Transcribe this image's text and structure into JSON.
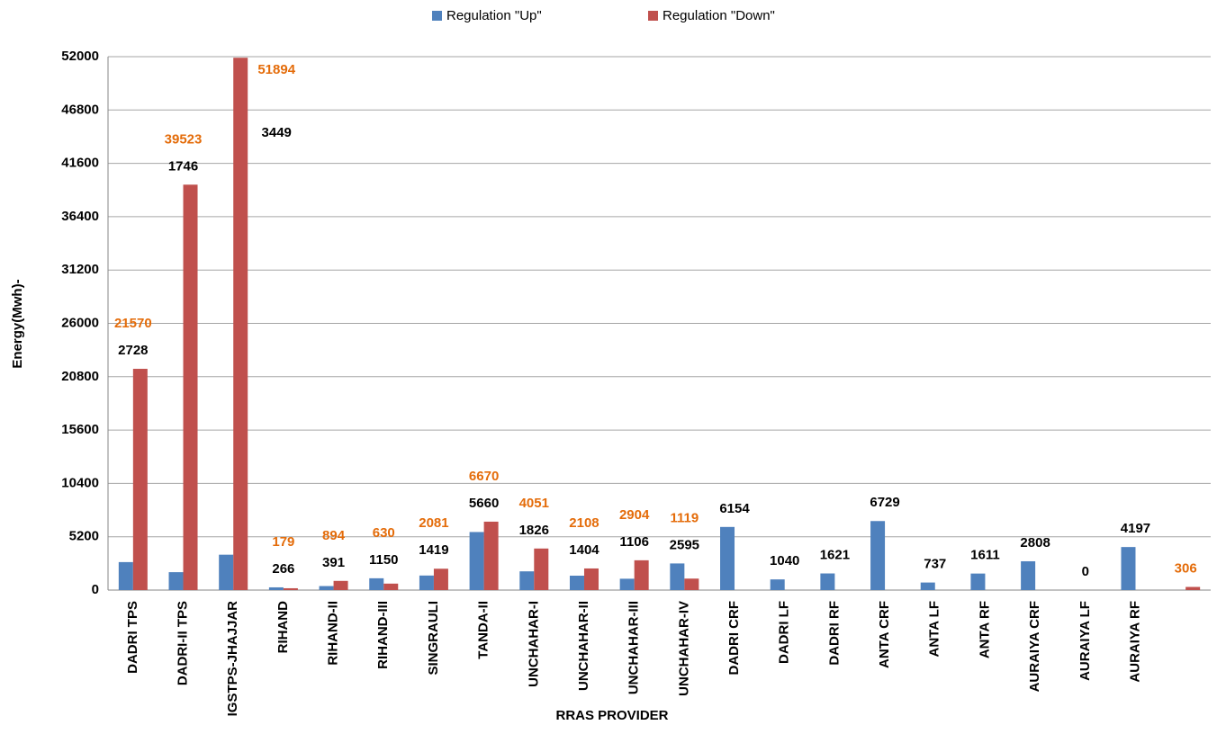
{
  "chart_data": {
    "type": "bar",
    "xlabel": "RRAS PROVIDER",
    "ylabel": "Energy(Mwh)-",
    "categories": [
      "DADRI TPS",
      "DADRI-II TPS",
      "IGSTPS-JHAJJAR",
      "RIHAND",
      "RIHAND-II",
      "RIHAND-III",
      "SINGRAULI",
      "TANDA-II",
      "UNCHAHAR-I",
      "UNCHAHAR-II",
      "UNCHAHAR-III",
      "UNCHAHAR-IV",
      "DADRI CRF",
      "DADRI LF",
      "DADRI RF",
      "ANTA CRF",
      "ANTA LF",
      "ANTA RF",
      "AURAIYA CRF",
      "AURAIYA LF",
      "AURAIYA RF",
      null
    ],
    "series": [
      {
        "name": "Regulation \"Up\"",
        "color": "#4f81bd",
        "label_color": "#000000",
        "values": [
          2728,
          1746,
          3449,
          266,
          391,
          1150,
          1419,
          5660,
          1826,
          1404,
          1106,
          2595,
          6154,
          1040,
          1621,
          6729,
          737,
          1611,
          2808,
          0,
          4197,
          null
        ]
      },
      {
        "name": "Regulation \"Down\"",
        "color": "#c0504d",
        "label_color": "#e46c0a",
        "values": [
          21570,
          39523,
          51894,
          179,
          894,
          630,
          2081,
          6670,
          4051,
          2108,
          2904,
          1119,
          null,
          null,
          null,
          null,
          null,
          null,
          null,
          null,
          null,
          306
        ]
      }
    ],
    "ylim": [
      0,
      52000
    ],
    "yticks": [
      0,
      5200,
      10400,
      15600,
      20800,
      26000,
      31200,
      36400,
      41600,
      46800,
      52000
    ],
    "grid": true,
    "legend": "top"
  }
}
